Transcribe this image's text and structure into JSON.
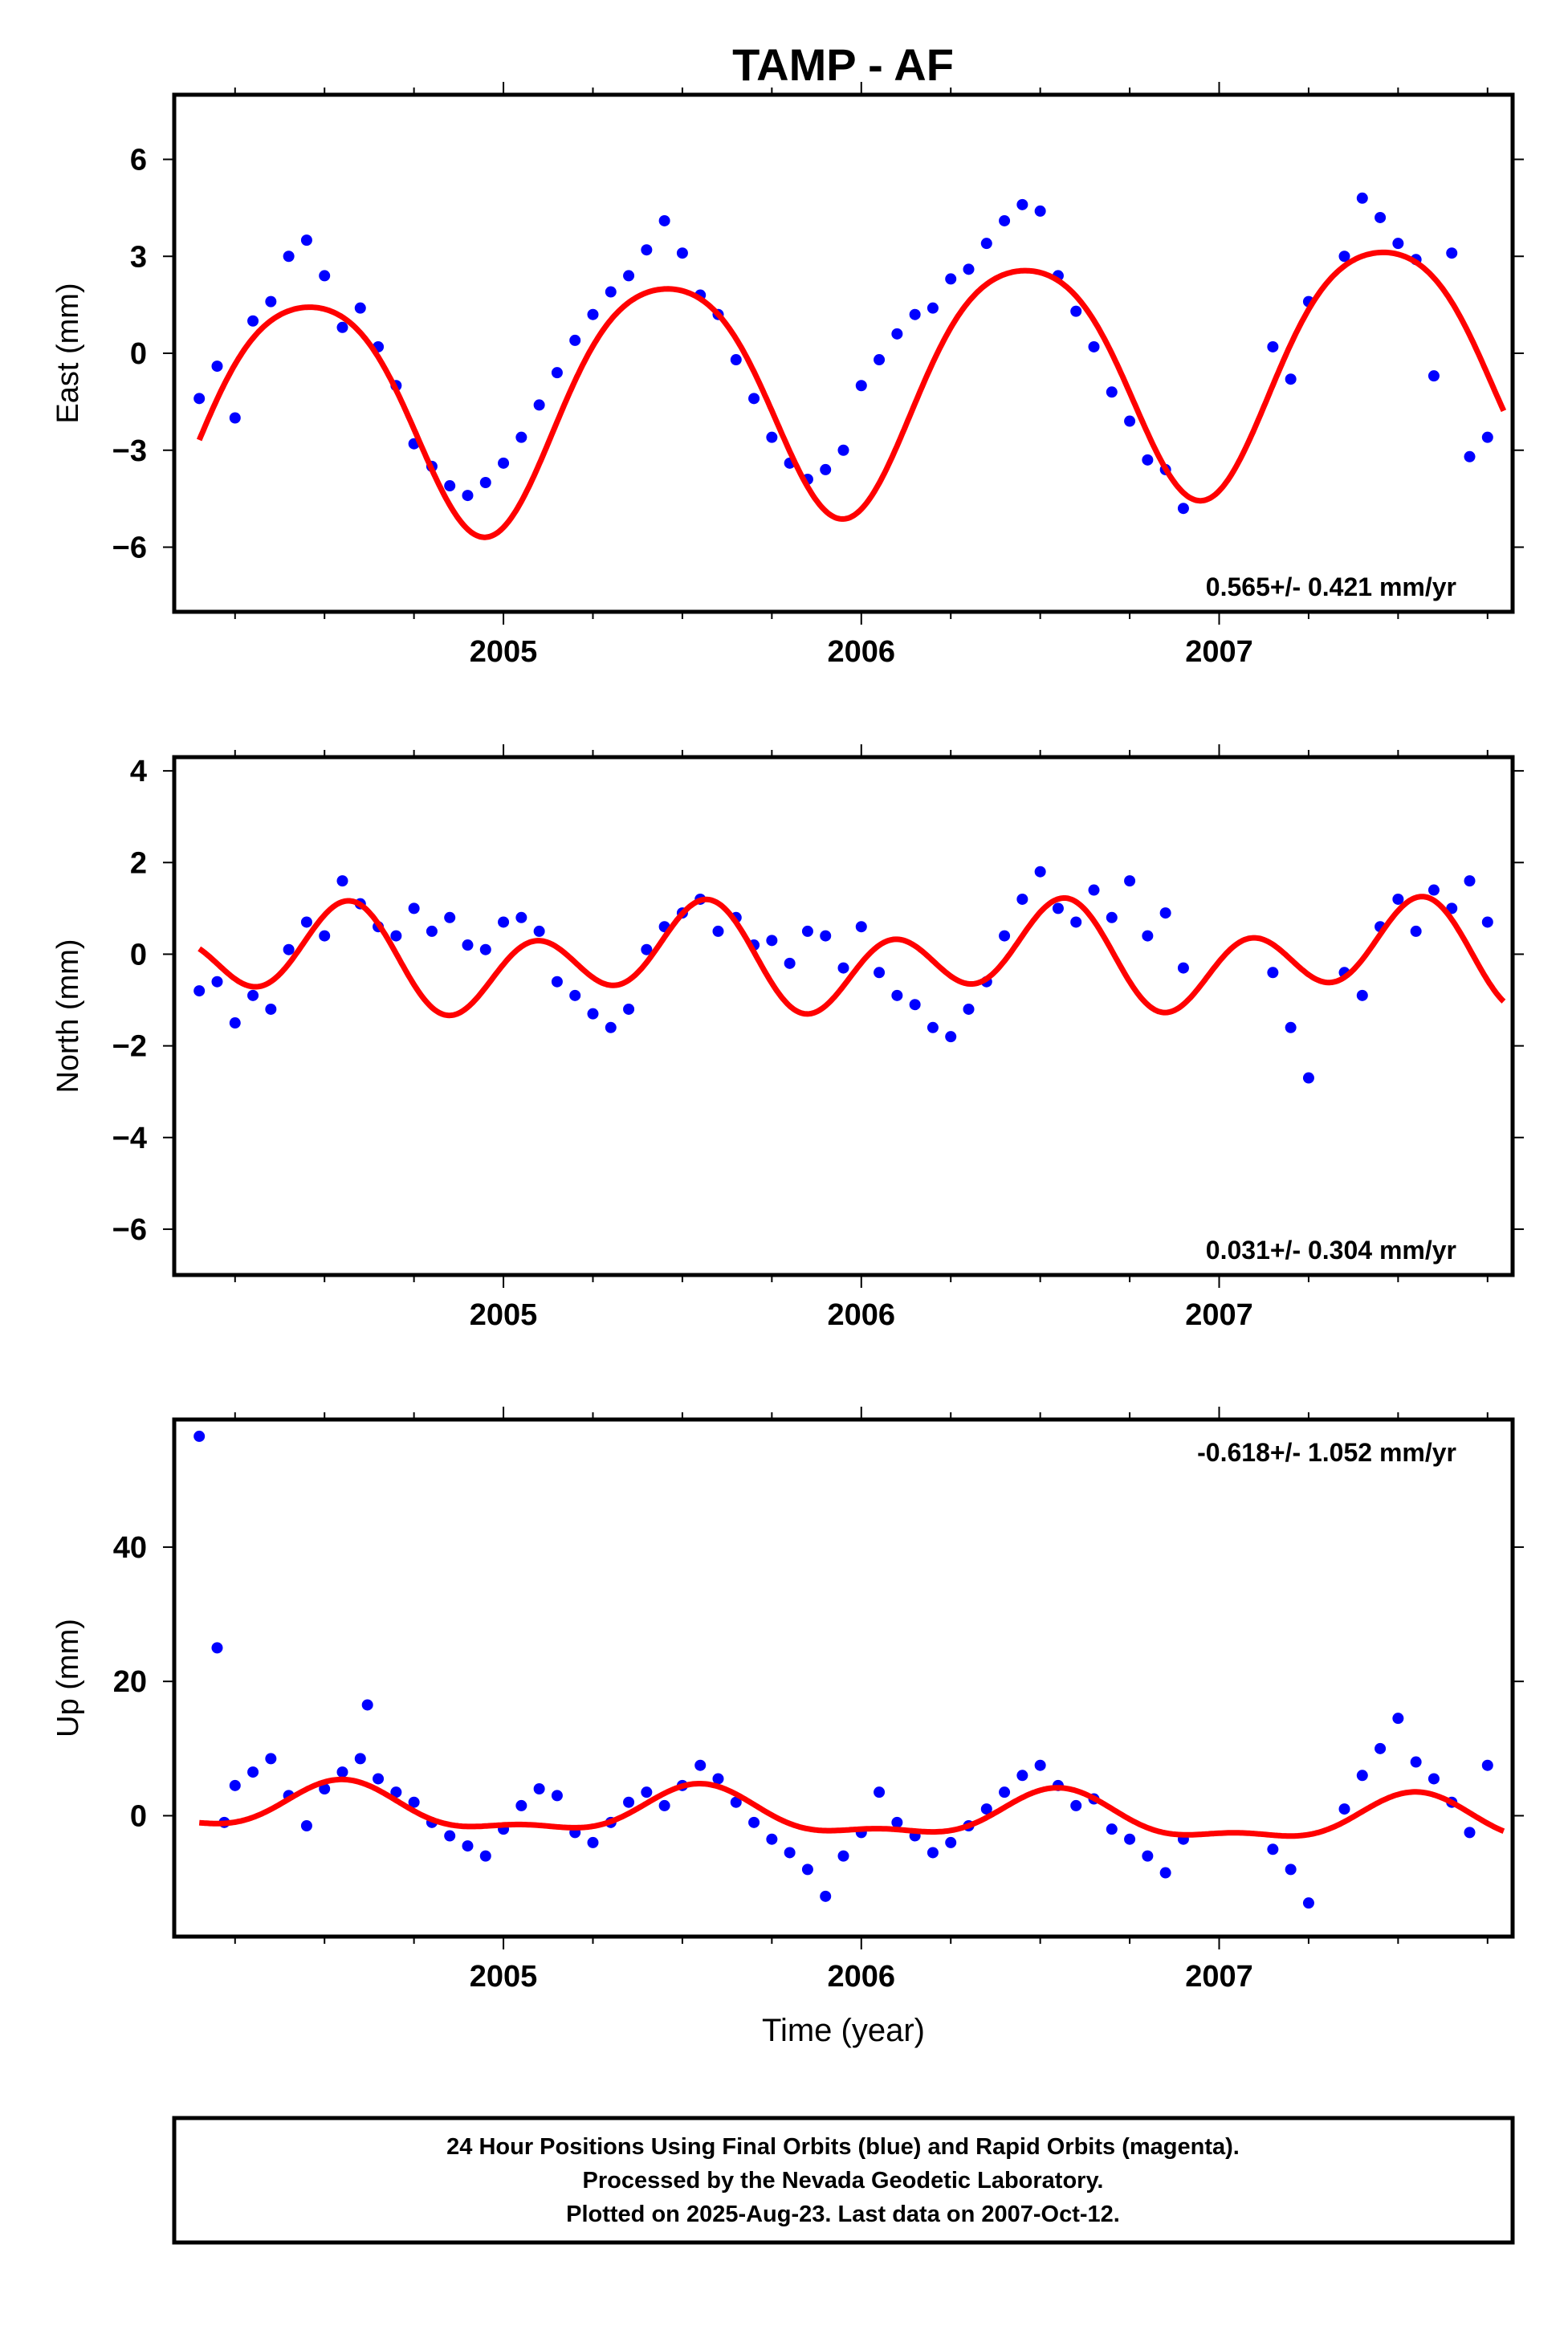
{
  "title": "TAMP - AF",
  "colors": {
    "final_points": "#0000ff",
    "fit": "#ff0000",
    "frame": "#000000"
  },
  "chart_data": [
    {
      "type": "scatter",
      "ylabel": "East (mm)",
      "xlabel": "",
      "xlim": [
        2004.08,
        2007.82
      ],
      "ylim": [
        -8,
        8
      ],
      "yticks": [
        -6,
        -3,
        0,
        3,
        6
      ],
      "xticks": [
        2005,
        2006,
        2007
      ],
      "rate_label": "0.565+/- 0.421 mm/yr",
      "rate_position": "bottom-right",
      "fit": {
        "rate": 0.565,
        "offset": -0.9,
        "annual": {
          "amp": 3.7,
          "peak": 0.45
        },
        "semiannual": {
          "amp": 0.5,
          "peak": 0.2
        }
      },
      "series": [
        {
          "values": [
            [
              2004.15,
              -1.4
            ],
            [
              2004.2,
              -0.4
            ],
            [
              2004.25,
              -2.0
            ],
            [
              2004.3,
              1.0
            ],
            [
              2004.35,
              1.6
            ],
            [
              2004.4,
              3.0
            ],
            [
              2004.45,
              3.5
            ],
            [
              2004.5,
              2.4
            ],
            [
              2004.55,
              0.8
            ],
            [
              2004.6,
              1.4
            ],
            [
              2004.65,
              0.2
            ],
            [
              2004.7,
              -1.0
            ],
            [
              2004.75,
              -2.8
            ],
            [
              2004.8,
              -3.5
            ],
            [
              2004.85,
              -4.1
            ],
            [
              2004.9,
              -4.4
            ],
            [
              2004.95,
              -4.0
            ],
            [
              2005.0,
              -3.4
            ],
            [
              2005.05,
              -2.6
            ],
            [
              2005.1,
              -1.6
            ],
            [
              2005.15,
              -0.6
            ],
            [
              2005.2,
              0.4
            ],
            [
              2005.25,
              1.2
            ],
            [
              2005.3,
              1.9
            ],
            [
              2005.35,
              2.4
            ],
            [
              2005.4,
              3.2
            ],
            [
              2005.45,
              4.1
            ],
            [
              2005.5,
              3.1
            ],
            [
              2005.55,
              1.8
            ],
            [
              2005.6,
              1.2
            ],
            [
              2005.65,
              -0.2
            ],
            [
              2005.7,
              -1.4
            ],
            [
              2005.75,
              -2.6
            ],
            [
              2005.8,
              -3.4
            ],
            [
              2005.85,
              -3.9
            ],
            [
              2005.9,
              -3.6
            ],
            [
              2005.95,
              -3.0
            ],
            [
              2006.0,
              -1.0
            ],
            [
              2006.05,
              -0.2
            ],
            [
              2006.1,
              0.6
            ],
            [
              2006.15,
              1.2
            ],
            [
              2006.2,
              1.4
            ],
            [
              2006.25,
              2.3
            ],
            [
              2006.3,
              2.6
            ],
            [
              2006.35,
              3.4
            ],
            [
              2006.4,
              4.1
            ],
            [
              2006.45,
              4.6
            ],
            [
              2006.5,
              4.4
            ],
            [
              2006.55,
              2.4
            ],
            [
              2006.6,
              1.3
            ],
            [
              2006.65,
              0.2
            ],
            [
              2006.7,
              -1.2
            ],
            [
              2006.75,
              -2.1
            ],
            [
              2006.8,
              -3.3
            ],
            [
              2006.85,
              -3.6
            ],
            [
              2006.9,
              -4.8
            ],
            [
              2007.15,
              0.2
            ],
            [
              2007.2,
              -0.8
            ],
            [
              2007.25,
              1.6
            ],
            [
              2007.35,
              3.0
            ],
            [
              2007.4,
              4.8
            ],
            [
              2007.45,
              4.2
            ],
            [
              2007.5,
              3.4
            ],
            [
              2007.55,
              2.9
            ],
            [
              2007.6,
              -0.7
            ],
            [
              2007.65,
              3.1
            ],
            [
              2007.7,
              -3.2
            ],
            [
              2007.75,
              -2.6
            ]
          ]
        }
      ]
    },
    {
      "type": "scatter",
      "ylabel": "North (mm)",
      "xlabel": "",
      "xlim": [
        2004.08,
        2007.82
      ],
      "ylim": [
        -7,
        4.3
      ],
      "yticks": [
        -6,
        -4,
        -2,
        0,
        2,
        4
      ],
      "xticks": [
        2005,
        2006,
        2007
      ],
      "rate_label": "0.031+/- 0.304 mm/yr",
      "rate_position": "bottom-right",
      "fit": {
        "rate": 0.031,
        "offset": -0.1,
        "annual": {
          "amp": 0.55,
          "peak": 0.48
        },
        "semiannual": {
          "amp": 0.85,
          "peak": 0.08
        }
      },
      "series": [
        {
          "values": [
            [
              2004.15,
              -0.8
            ],
            [
              2004.2,
              -0.6
            ],
            [
              2004.25,
              -1.5
            ],
            [
              2004.3,
              -0.9
            ],
            [
              2004.35,
              -1.2
            ],
            [
              2004.4,
              0.1
            ],
            [
              2004.45,
              0.7
            ],
            [
              2004.5,
              0.4
            ],
            [
              2004.55,
              1.6
            ],
            [
              2004.6,
              1.1
            ],
            [
              2004.65,
              0.6
            ],
            [
              2004.7,
              0.4
            ],
            [
              2004.75,
              1.0
            ],
            [
              2004.8,
              0.5
            ],
            [
              2004.85,
              0.8
            ],
            [
              2004.9,
              0.2
            ],
            [
              2004.95,
              0.1
            ],
            [
              2005.0,
              0.7
            ],
            [
              2005.05,
              0.8
            ],
            [
              2005.1,
              0.5
            ],
            [
              2005.15,
              -0.6
            ],
            [
              2005.2,
              -0.9
            ],
            [
              2005.25,
              -1.3
            ],
            [
              2005.3,
              -1.6
            ],
            [
              2005.35,
              -1.2
            ],
            [
              2005.4,
              0.1
            ],
            [
              2005.45,
              0.6
            ],
            [
              2005.5,
              0.9
            ],
            [
              2005.55,
              1.2
            ],
            [
              2005.6,
              0.5
            ],
            [
              2005.65,
              0.8
            ],
            [
              2005.7,
              0.2
            ],
            [
              2005.75,
              0.3
            ],
            [
              2005.8,
              -0.2
            ],
            [
              2005.85,
              0.5
            ],
            [
              2005.9,
              0.4
            ],
            [
              2005.95,
              -0.3
            ],
            [
              2006.0,
              0.6
            ],
            [
              2006.05,
              -0.4
            ],
            [
              2006.1,
              -0.9
            ],
            [
              2006.15,
              -1.1
            ],
            [
              2006.2,
              -1.6
            ],
            [
              2006.25,
              -1.8
            ],
            [
              2006.3,
              -1.2
            ],
            [
              2006.35,
              -0.6
            ],
            [
              2006.4,
              0.4
            ],
            [
              2006.45,
              1.2
            ],
            [
              2006.5,
              1.8
            ],
            [
              2006.55,
              1.0
            ],
            [
              2006.6,
              0.7
            ],
            [
              2006.65,
              1.4
            ],
            [
              2006.7,
              0.8
            ],
            [
              2006.75,
              1.6
            ],
            [
              2006.8,
              0.4
            ],
            [
              2006.85,
              0.9
            ],
            [
              2006.9,
              -0.3
            ],
            [
              2007.15,
              -0.4
            ],
            [
              2007.2,
              -1.6
            ],
            [
              2007.25,
              -2.7
            ],
            [
              2007.35,
              -0.4
            ],
            [
              2007.4,
              -0.9
            ],
            [
              2007.45,
              0.6
            ],
            [
              2007.5,
              1.2
            ],
            [
              2007.55,
              0.5
            ],
            [
              2007.6,
              1.4
            ],
            [
              2007.65,
              1.0
            ],
            [
              2007.7,
              1.6
            ],
            [
              2007.75,
              0.7
            ]
          ]
        }
      ]
    },
    {
      "type": "scatter",
      "ylabel": "Up (mm)",
      "xlabel": "Time (year)",
      "xlim": [
        2004.08,
        2007.82
      ],
      "ylim": [
        -18,
        59
      ],
      "yticks": [
        0,
        20,
        40
      ],
      "xticks": [
        2005,
        2006,
        2007
      ],
      "rate_label": "-0.618+/- 1.052 mm/yr",
      "rate_position": "top-right",
      "fit": {
        "rate": -0.618,
        "offset": 0.0,
        "annual": {
          "amp": 3.2,
          "peak": 0.55
        },
        "semiannual": {
          "amp": 1.3,
          "peak": 0.05
        }
      },
      "series": [
        {
          "values": [
            [
              2004.15,
              56.5
            ],
            [
              2004.2,
              25.0
            ],
            [
              2004.22,
              -1.0
            ],
            [
              2004.25,
              4.5
            ],
            [
              2004.3,
              6.5
            ],
            [
              2004.35,
              8.5
            ],
            [
              2004.4,
              3.0
            ],
            [
              2004.45,
              -1.5
            ],
            [
              2004.5,
              4.0
            ],
            [
              2004.55,
              6.5
            ],
            [
              2004.6,
              8.5
            ],
            [
              2004.62,
              16.5
            ],
            [
              2004.65,
              5.5
            ],
            [
              2004.7,
              3.5
            ],
            [
              2004.75,
              2.0
            ],
            [
              2004.8,
              -1.0
            ],
            [
              2004.85,
              -3.0
            ],
            [
              2004.9,
              -4.5
            ],
            [
              2004.95,
              -6.0
            ],
            [
              2005.0,
              -2.0
            ],
            [
              2005.05,
              1.5
            ],
            [
              2005.1,
              4.0
            ],
            [
              2005.15,
              3.0
            ],
            [
              2005.2,
              -2.5
            ],
            [
              2005.25,
              -4.0
            ],
            [
              2005.3,
              -1.0
            ],
            [
              2005.35,
              2.0
            ],
            [
              2005.4,
              3.5
            ],
            [
              2005.45,
              1.5
            ],
            [
              2005.5,
              4.5
            ],
            [
              2005.55,
              7.5
            ],
            [
              2005.6,
              5.5
            ],
            [
              2005.65,
              2.0
            ],
            [
              2005.7,
              -1.0
            ],
            [
              2005.75,
              -3.5
            ],
            [
              2005.8,
              -5.5
            ],
            [
              2005.85,
              -8.0
            ],
            [
              2005.9,
              -12.0
            ],
            [
              2005.95,
              -6.0
            ],
            [
              2006.0,
              -2.5
            ],
            [
              2006.05,
              3.5
            ],
            [
              2006.1,
              -1.0
            ],
            [
              2006.15,
              -3.0
            ],
            [
              2006.2,
              -5.5
            ],
            [
              2006.25,
              -4.0
            ],
            [
              2006.3,
              -1.5
            ],
            [
              2006.35,
              1.0
            ],
            [
              2006.4,
              3.5
            ],
            [
              2006.45,
              6.0
            ],
            [
              2006.5,
              7.5
            ],
            [
              2006.55,
              4.5
            ],
            [
              2006.6,
              1.5
            ],
            [
              2006.65,
              2.5
            ],
            [
              2006.7,
              -2.0
            ],
            [
              2006.75,
              -3.5
            ],
            [
              2006.8,
              -6.0
            ],
            [
              2006.85,
              -8.5
            ],
            [
              2006.9,
              -3.5
            ],
            [
              2007.15,
              -5.0
            ],
            [
              2007.2,
              -8.0
            ],
            [
              2007.25,
              -13.0
            ],
            [
              2007.35,
              1.0
            ],
            [
              2007.4,
              6.0
            ],
            [
              2007.45,
              10.0
            ],
            [
              2007.5,
              14.5
            ],
            [
              2007.55,
              8.0
            ],
            [
              2007.6,
              5.5
            ],
            [
              2007.65,
              2.0
            ],
            [
              2007.7,
              -2.5
            ],
            [
              2007.75,
              7.5
            ]
          ]
        }
      ]
    }
  ],
  "footer": {
    "line1": "24 Hour Positions Using Final Orbits (blue) and Rapid Orbits (magenta).",
    "line2": "Processed by the Nevada Geodetic Laboratory.",
    "line3": "Plotted on 2025-Aug-23. Last data on 2007-Oct-12."
  }
}
